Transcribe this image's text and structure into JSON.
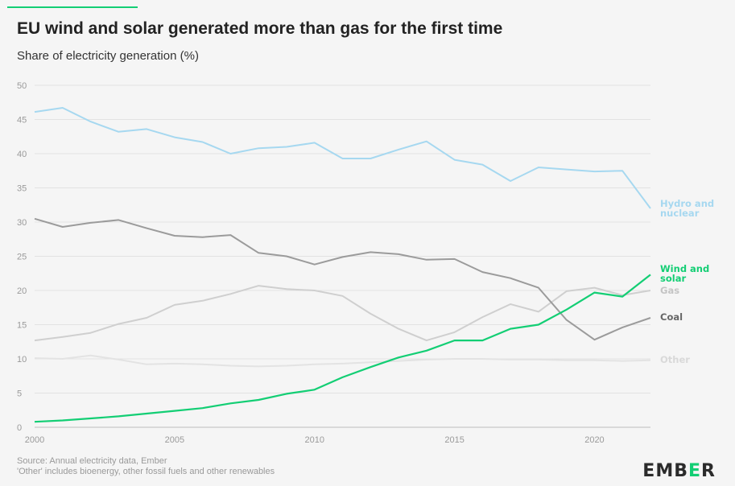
{
  "header": {
    "title": "EU wind and solar generated more than gas for the first time",
    "subtitle": "Share of electricity generation (%)"
  },
  "footer": {
    "source": "Source: Annual electricity data, Ember",
    "note": "'Other' includes bioenergy, other fossil fuels and other renewables"
  },
  "logo": {
    "text": "EMBER",
    "accent_color": "#13ce74"
  },
  "chart_data": {
    "type": "line",
    "title": "EU wind and solar generated more than gas for the first time",
    "ylabel": "Share of electricity generation (%)",
    "xlabel": "",
    "xlim": [
      2000,
      2022
    ],
    "ylim": [
      0,
      50
    ],
    "x_ticks": [
      2000,
      2005,
      2010,
      2015,
      2020
    ],
    "y_ticks": [
      0,
      5,
      10,
      15,
      20,
      25,
      30,
      35,
      40,
      45,
      50
    ],
    "grid": "horizontal",
    "x": [
      2000,
      2001,
      2002,
      2003,
      2004,
      2005,
      2006,
      2007,
      2008,
      2009,
      2010,
      2011,
      2012,
      2013,
      2014,
      2015,
      2016,
      2017,
      2018,
      2019,
      2020,
      2021,
      2022
    ],
    "series": [
      {
        "key": "hydro",
        "name": "Hydro and nuclear",
        "label_lines": [
          "Hydro and",
          "nuclear"
        ],
        "color": "#a6d8f0",
        "values": [
          46.1,
          46.7,
          44.7,
          43.2,
          43.6,
          42.4,
          41.7,
          40.0,
          40.8,
          41.0,
          41.6,
          39.3,
          39.3,
          40.6,
          41.8,
          39.1,
          38.4,
          36.0,
          38.0,
          37.7,
          37.4,
          37.5,
          32.0
        ]
      },
      {
        "key": "coal",
        "name": "Coal",
        "label_lines": [
          "Coal"
        ],
        "color": "#9b9b9b",
        "values": [
          30.5,
          29.3,
          29.9,
          30.3,
          29.1,
          28.0,
          27.8,
          28.1,
          25.5,
          25.0,
          23.8,
          24.9,
          25.6,
          25.3,
          24.5,
          24.6,
          22.7,
          21.8,
          20.4,
          15.7,
          12.8,
          14.6,
          16.0
        ]
      },
      {
        "key": "wind_solar",
        "name": "Wind and solar",
        "label_lines": [
          "Wind and",
          "solar"
        ],
        "color": "#13ce74",
        "values": [
          0.8,
          1.0,
          1.3,
          1.6,
          2.0,
          2.4,
          2.8,
          3.5,
          4.0,
          4.9,
          5.5,
          7.3,
          8.8,
          10.2,
          11.2,
          12.7,
          12.7,
          14.4,
          15.0,
          17.2,
          19.7,
          19.1,
          22.3
        ]
      },
      {
        "key": "gas",
        "name": "Gas",
        "label_lines": [
          "Gas"
        ],
        "color": "#cfcfcf",
        "values": [
          12.7,
          13.2,
          13.8,
          15.1,
          16.0,
          17.9,
          18.5,
          19.5,
          20.7,
          20.2,
          20.0,
          19.2,
          16.6,
          14.4,
          12.7,
          13.9,
          16.1,
          18.0,
          16.9,
          19.9,
          20.4,
          19.3,
          20.0
        ]
      },
      {
        "key": "other",
        "name": "Other",
        "label_lines": [
          "Other"
        ],
        "color": "#e3e3e3",
        "values": [
          10.1,
          10.0,
          10.5,
          9.9,
          9.2,
          9.3,
          9.2,
          9.0,
          8.9,
          9.0,
          9.2,
          9.3,
          9.5,
          9.7,
          9.9,
          10.0,
          10.0,
          9.9,
          9.9,
          9.8,
          9.8,
          9.7,
          9.8
        ]
      }
    ]
  }
}
